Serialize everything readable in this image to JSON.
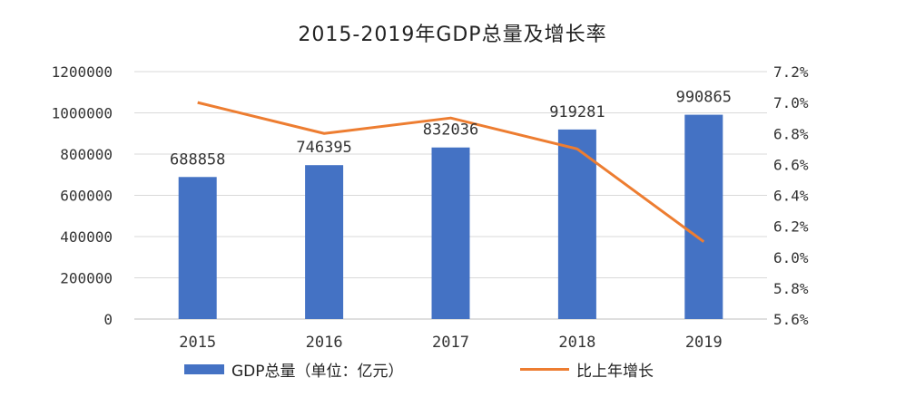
{
  "chart_data": {
    "type": "bar",
    "title": "2015-2019年GDP总量及增长率",
    "categories": [
      "2015",
      "2016",
      "2017",
      "2018",
      "2019"
    ],
    "series": [
      {
        "name": "GDP总量（单位：亿元）",
        "type": "bar",
        "axis": "left",
        "values": [
          688858,
          746395,
          832036,
          919281,
          990865
        ],
        "data_labels": [
          "688858",
          "746395",
          "832036",
          "919281",
          "990865"
        ],
        "color": "#4472C4"
      },
      {
        "name": "比上年增长",
        "type": "line",
        "axis": "right",
        "values": [
          7.0,
          6.8,
          6.9,
          6.7,
          6.1
        ],
        "color": "#ED7D31"
      }
    ],
    "y_left": {
      "ylim": [
        0,
        1200000
      ],
      "ticks": [
        "0",
        "200000",
        "400000",
        "600000",
        "800000",
        "1000000",
        "1200000"
      ]
    },
    "y_right": {
      "ylim": [
        5.6,
        7.2
      ],
      "ticks": [
        "5.6%",
        "5.8%",
        "6.0%",
        "6.2%",
        "6.4%",
        "6.6%",
        "6.8%",
        "7.0%",
        "7.2%"
      ]
    },
    "grid": true,
    "legend_position": "bottom"
  }
}
